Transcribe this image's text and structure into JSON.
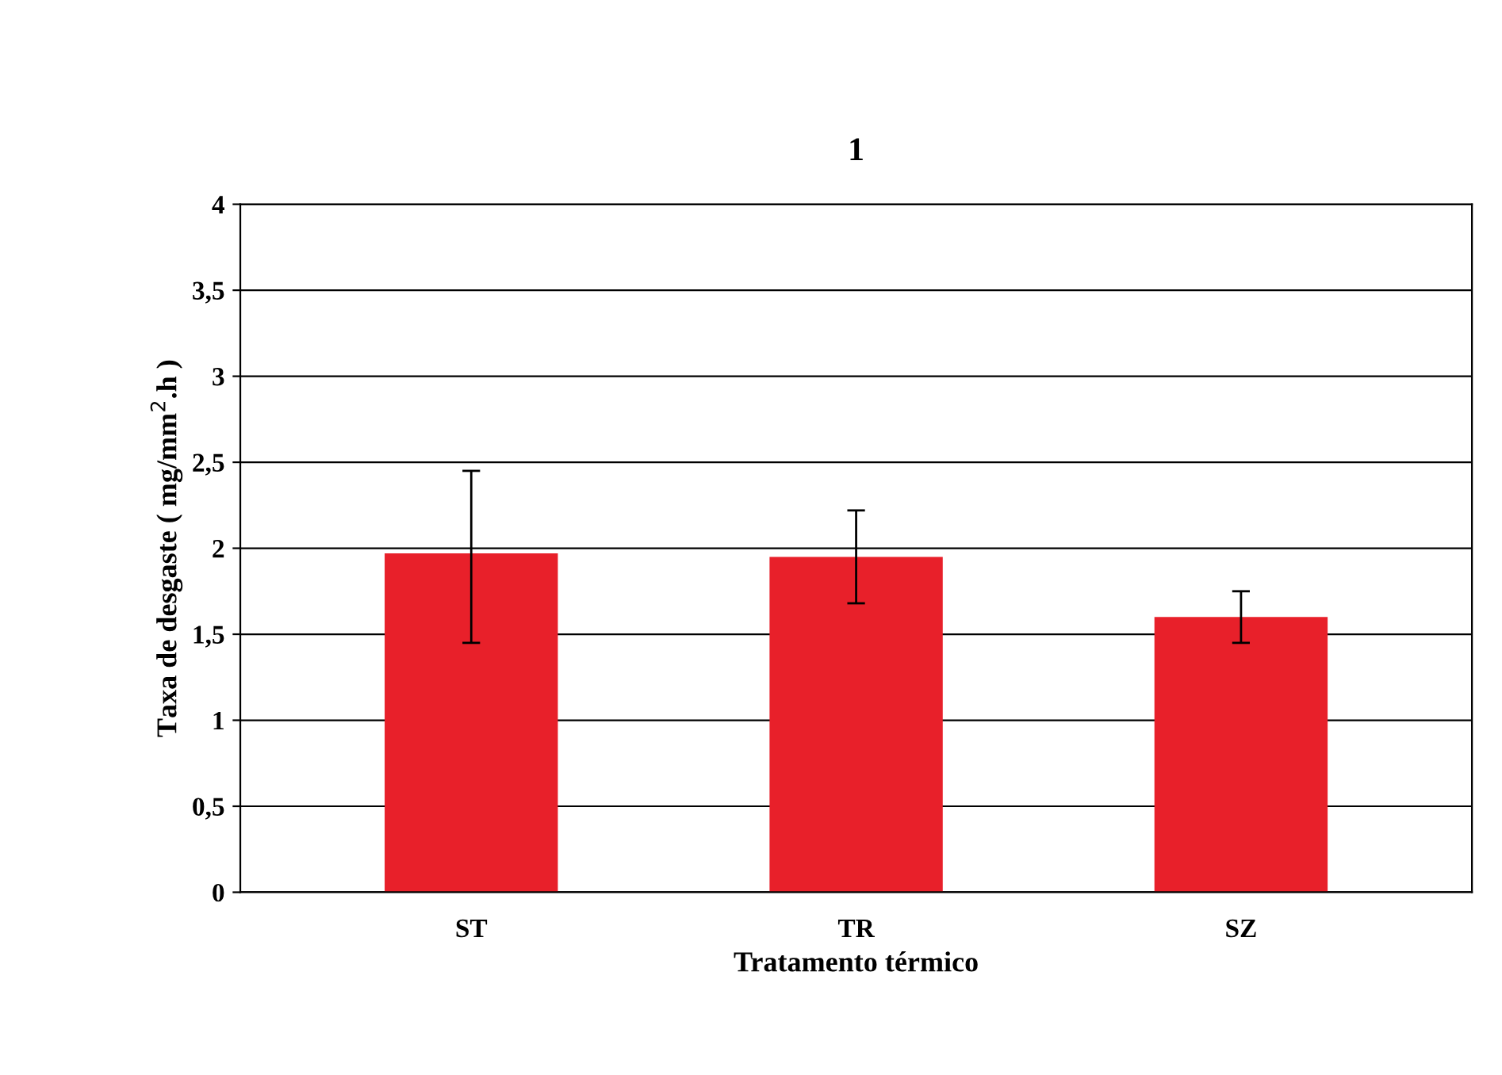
{
  "chart_data": {
    "type": "bar",
    "title": "1",
    "xlabel": "Tratamento térmico",
    "ylabel": "Taxa de desgaste ( mg/mm$^{2}$.h )",
    "categories": [
      "ST",
      "TR",
      "SZ"
    ],
    "values": [
      1.97,
      1.95,
      1.6
    ],
    "errors": [
      [
        1.45,
        2.45
      ],
      [
        1.68,
        2.22
      ],
      [
        1.45,
        1.75
      ]
    ],
    "color": "#e8202a",
    "ylim": [
      0,
      4
    ],
    "yticks": [
      0,
      {
        "value": 0.5,
        "label": "0,5"
      },
      1,
      {
        "value": 1.5,
        "label": "1,5"
      },
      2,
      {
        "value": 2.5,
        "label": "2,5"
      },
      3,
      {
        "value": 3.5,
        "label": "3,5"
      },
      4
    ],
    "grid": "y",
    "legend": false
  }
}
